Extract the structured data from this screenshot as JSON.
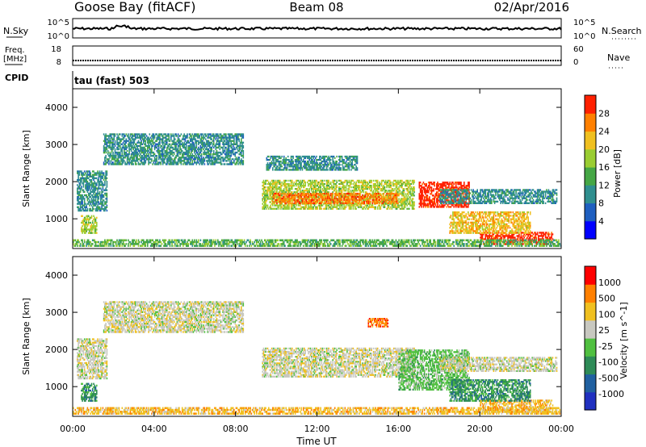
{
  "header": {
    "station": "Goose Bay (fitACF)",
    "beam": "Beam 08",
    "date": "02/Apr/2016"
  },
  "status_panels": {
    "nsky": {
      "label": "N.Sky",
      "tick_top": "10^5",
      "tick_bottom": "10^0"
    },
    "nsearch": {
      "label": "N.Search",
      "tick_top": "10^5",
      "tick_bottom": "10^0"
    },
    "freq": {
      "label_line1": "Freq.",
      "label_line2": "[MHz]",
      "tick_top": "18",
      "tick_bottom": "8"
    },
    "nave": {
      "label": "Nave",
      "tick_top": "60",
      "tick_bottom": "0"
    },
    "cpid": {
      "label": "CPID",
      "text": "tau (fast) 503"
    }
  },
  "chart_data": [
    {
      "type": "heatmap",
      "panel": "power",
      "ylabel": "Slant Range [km]",
      "colorbar_label": "Power [dB]",
      "ylim": [
        200,
        4500
      ],
      "yticks": [
        "1000",
        "2000",
        "3000",
        "4000"
      ],
      "colorbar_ticks": [
        "4",
        "8",
        "12",
        "16",
        "20",
        "24",
        "28"
      ],
      "colors": [
        "#0000ff",
        "#1f5fc0",
        "#2f8f8f",
        "#45a745",
        "#9acd32",
        "#f0c020",
        "#ff8000",
        "#ff2000"
      ],
      "bands": [
        {
          "x_start_h": 0.2,
          "x_end_h": 1.7,
          "y_low": 1200,
          "y_high": 2300,
          "level": 2
        },
        {
          "x_start_h": 0.4,
          "x_end_h": 1.2,
          "y_low": 600,
          "y_high": 1100,
          "level": 4
        },
        {
          "x_start_h": 1.5,
          "x_end_h": 8.4,
          "y_low": 2450,
          "y_high": 3300,
          "level": 2
        },
        {
          "x_start_h": 9.3,
          "x_end_h": 16.8,
          "y_low": 1250,
          "y_high": 2050,
          "level": 4
        },
        {
          "x_start_h": 9.8,
          "x_end_h": 16.0,
          "y_low": 1400,
          "y_high": 1700,
          "level": 6
        },
        {
          "x_start_h": 17.0,
          "x_end_h": 19.5,
          "y_low": 1300,
          "y_high": 2000,
          "level": 7
        },
        {
          "x_start_h": 18.0,
          "x_end_h": 23.8,
          "y_low": 1400,
          "y_high": 1800,
          "level": 2
        },
        {
          "x_start_h": 20.0,
          "x_end_h": 23.6,
          "y_low": 300,
          "y_high": 650,
          "level": 7
        },
        {
          "x_start_h": 18.5,
          "x_end_h": 22.5,
          "y_low": 600,
          "y_high": 1200,
          "level": 5
        },
        {
          "x_start_h": 9.5,
          "x_end_h": 14.0,
          "y_low": 2300,
          "y_high": 2700,
          "level": 2
        },
        {
          "x_start_h": 0.0,
          "x_end_h": 24.0,
          "y_low": 250,
          "y_high": 450,
          "level": 3
        }
      ]
    },
    {
      "type": "heatmap",
      "panel": "velocity",
      "ylabel": "Slant Range [km]",
      "colorbar_label": "Velocity [m s^-1]",
      "ylim": [
        200,
        4500
      ],
      "yticks": [
        "1000",
        "2000",
        "3000",
        "4000"
      ],
      "colorbar_ticks": [
        "1000",
        "500",
        "100",
        "25",
        "-25",
        "-100",
        "-500",
        "-1000"
      ],
      "colors": [
        "#2030c0",
        "#2060a0",
        "#2e8b57",
        "#50c040",
        "#c8c8c0",
        "#f0c020",
        "#ff8000",
        "#ff0000"
      ],
      "bands": [
        {
          "x_start_h": 0.2,
          "x_end_h": 1.7,
          "y_low": 1200,
          "y_high": 2300,
          "level": 4
        },
        {
          "x_start_h": 0.4,
          "x_end_h": 1.2,
          "y_low": 600,
          "y_high": 1100,
          "level": 2
        },
        {
          "x_start_h": 1.5,
          "x_end_h": 8.4,
          "y_low": 2450,
          "y_high": 3300,
          "level": 4
        },
        {
          "x_start_h": 9.3,
          "x_end_h": 16.8,
          "y_low": 1250,
          "y_high": 2050,
          "level": 4
        },
        {
          "x_start_h": 16.0,
          "x_end_h": 19.5,
          "y_low": 900,
          "y_high": 2000,
          "level": 3
        },
        {
          "x_start_h": 18.0,
          "x_end_h": 23.8,
          "y_low": 1400,
          "y_high": 1800,
          "level": 4
        },
        {
          "x_start_h": 20.0,
          "x_end_h": 23.6,
          "y_low": 300,
          "y_high": 650,
          "level": 5
        },
        {
          "x_start_h": 18.5,
          "x_end_h": 22.5,
          "y_low": 600,
          "y_high": 1200,
          "level": 2
        },
        {
          "x_start_h": 14.5,
          "x_end_h": 15.5,
          "y_low": 2600,
          "y_high": 2850,
          "level": 6
        },
        {
          "x_start_h": 0.0,
          "x_end_h": 24.0,
          "y_low": 250,
          "y_high": 450,
          "level": 5
        }
      ]
    }
  ],
  "xaxis": {
    "label": "Time UT",
    "ticks": [
      "00:00",
      "04:00",
      "08:00",
      "12:00",
      "16:00",
      "20:00",
      "00:00"
    ]
  }
}
